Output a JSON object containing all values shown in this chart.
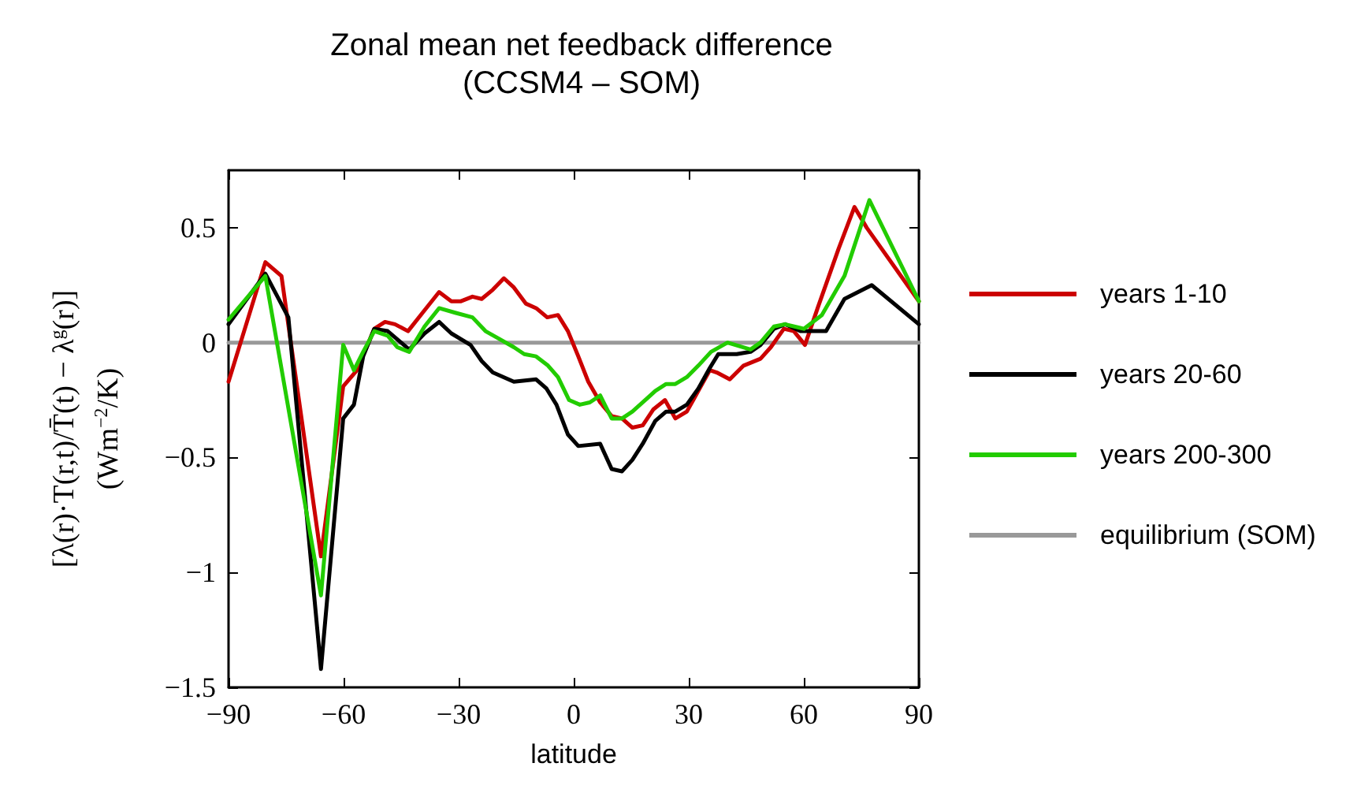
{
  "chart_data": {
    "type": "line",
    "title": "Zonal mean net feedback difference",
    "subtitle": "(CCSM4 – SOM)",
    "xlabel": "latitude",
    "ylabel": "[λ(r)·T(r,t)/T̄(t) − λ$^{g}$(r)]\n(Wm$^{−2}$/K)",
    "xlim": [
      -90,
      90
    ],
    "xticks": [
      -90,
      -60,
      -30,
      0,
      30,
      60,
      90
    ],
    "ylim": [
      -1.5,
      0.75
    ],
    "yticks": [
      -1.5,
      -1,
      -0.5,
      0,
      0.5
    ],
    "grid": false,
    "legend": "right",
    "series": [
      {
        "name": "years 1-10",
        "color": "#cc0000",
        "x": [
          -90,
          -80.4,
          -76.2,
          -65.9,
          -60.1,
          -56.5,
          -52,
          -49.2,
          -46.6,
          -43.2,
          -39.4,
          -35.1,
          -31.9,
          -29.4,
          -26.4,
          -24,
          -21.1,
          -18.2,
          -15.6,
          -12.5,
          -9.8,
          -6.9,
          -4.1,
          -1.5,
          1.2,
          3.8,
          6.9,
          9.9,
          12.6,
          15.3,
          18,
          20.8,
          23.8,
          26.5,
          29.5,
          32.5,
          35.5,
          37.3,
          40.7,
          44.3,
          48.7,
          51.4,
          54.8,
          57.4,
          60.3,
          63.6,
          69.1,
          73.2,
          76.4,
          90
        ],
        "values": [
          -0.17,
          0.35,
          0.29,
          -0.93,
          -0.19,
          -0.12,
          0.06,
          0.09,
          0.08,
          0.05,
          0.13,
          0.22,
          0.18,
          0.18,
          0.2,
          0.19,
          0.23,
          0.28,
          0.24,
          0.17,
          0.15,
          0.11,
          0.12,
          0.05,
          -0.06,
          -0.17,
          -0.26,
          -0.32,
          -0.33,
          -0.37,
          -0.36,
          -0.29,
          -0.25,
          -0.33,
          -0.3,
          -0.21,
          -0.12,
          -0.13,
          -0.16,
          -0.1,
          -0.07,
          -0.02,
          0.06,
          0.05,
          -0.01,
          0.15,
          0.41,
          0.59,
          0.5,
          0.18
        ]
      },
      {
        "name": "years 20-60",
        "color": "#000000",
        "x": [
          -90,
          -80.4,
          -74.4,
          -65.9,
          -60.1,
          -57.3,
          -54.9,
          -52,
          -48.5,
          -42.9,
          -38.9,
          -35.1,
          -31.9,
          -26.9,
          -24,
          -21.1,
          -15.6,
          -9.8,
          -7.1,
          -4.5,
          -1.5,
          1.2,
          6.9,
          9.9,
          12.6,
          15.3,
          18,
          21.3,
          24.1,
          26.5,
          29.5,
          32.5,
          35.5,
          37.7,
          42.5,
          46.1,
          48.7,
          52.2,
          55.1,
          59.1,
          65.8,
          70.6,
          77.7,
          90
        ],
        "values": [
          0.08,
          0.3,
          0.11,
          -1.42,
          -0.33,
          -0.27,
          -0.06,
          0.06,
          0.05,
          -0.03,
          0.04,
          0.09,
          0.04,
          -0.01,
          -0.08,
          -0.13,
          -0.17,
          -0.16,
          -0.2,
          -0.27,
          -0.4,
          -0.45,
          -0.44,
          -0.55,
          -0.56,
          -0.51,
          -0.44,
          -0.34,
          -0.3,
          -0.3,
          -0.27,
          -0.2,
          -0.11,
          -0.05,
          -0.05,
          -0.04,
          -0.01,
          0.06,
          0.08,
          0.05,
          0.05,
          0.19,
          0.25,
          0.08
        ]
      },
      {
        "name": "years 200-300",
        "color": "#22cc00",
        "x": [
          -90,
          -80.4,
          -65.9,
          -60.1,
          -57.3,
          -54.9,
          -52,
          -48.5,
          -46,
          -42.9,
          -38.9,
          -35.1,
          -30.9,
          -26.4,
          -23,
          -19.8,
          -15.6,
          -12.9,
          -9.8,
          -6.7,
          -4.1,
          -1.2,
          1.6,
          4.2,
          6.9,
          9.9,
          12.6,
          15.3,
          18,
          21.3,
          24.1,
          26.5,
          29.5,
          32.5,
          35.8,
          40.1,
          46.1,
          48.7,
          52.2,
          55.1,
          60,
          64.7,
          70.6,
          77.1,
          90
        ],
        "values": [
          0.1,
          0.29,
          -1.1,
          -0.01,
          -0.12,
          -0.04,
          0.05,
          0.03,
          -0.02,
          -0.04,
          0.07,
          0.15,
          0.13,
          0.11,
          0.05,
          0.02,
          -0.02,
          -0.05,
          -0.06,
          -0.1,
          -0.15,
          -0.25,
          -0.27,
          -0.26,
          -0.23,
          -0.33,
          -0.33,
          -0.3,
          -0.26,
          -0.21,
          -0.18,
          -0.18,
          -0.15,
          -0.1,
          -0.04,
          0,
          -0.03,
          0,
          0.07,
          0.08,
          0.06,
          0.12,
          0.29,
          0.62,
          0.18
        ]
      },
      {
        "name": "equilibrium (SOM)",
        "color": "#999999",
        "x": [
          -90,
          90
        ],
        "values": [
          0,
          0
        ]
      }
    ]
  }
}
